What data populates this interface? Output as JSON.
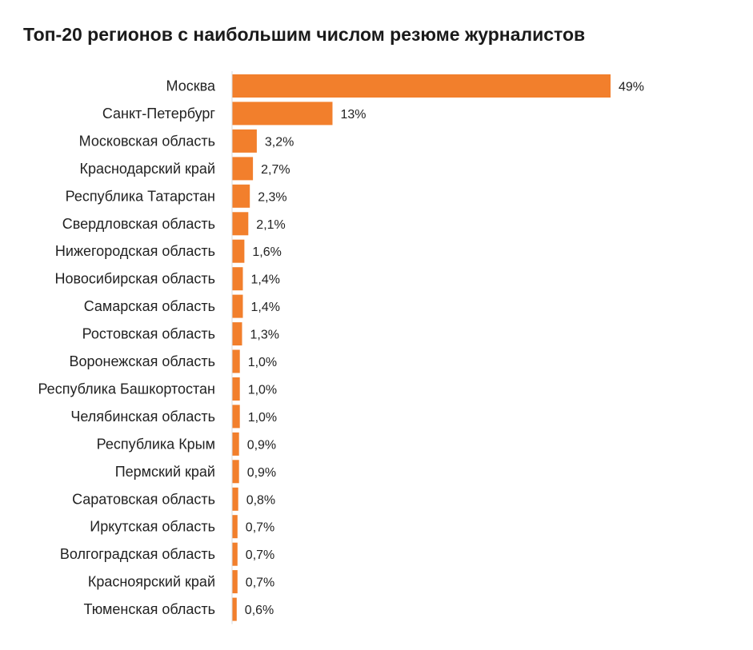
{
  "chart_data": {
    "type": "bar",
    "orientation": "horizontal",
    "title": "Топ-20 регионов с наибольшим числом резюме журналистов",
    "xlabel": "",
    "ylabel": "",
    "unit": "%",
    "xlim": [
      0,
      49
    ],
    "grid": false,
    "bar_color": "#f27f2c",
    "categories": [
      "Москва",
      "Санкт-Петербург",
      "Московская область",
      "Краснодарский край",
      "Республика Татарстан",
      "Свердловская область",
      "Нижегородская область",
      "Новосибирская область",
      "Самарская область",
      "Ростовская область",
      "Воронежская область",
      "Республика Башкортостан",
      "Челябинская область",
      "Республика Крым",
      "Пермский край",
      "Саратовская область",
      "Иркутская область",
      "Волгоградская область",
      "Красноярский край",
      "Тюменская область"
    ],
    "values": [
      49,
      13,
      3.2,
      2.7,
      2.3,
      2.1,
      1.6,
      1.4,
      1.4,
      1.3,
      1.0,
      1.0,
      1.0,
      0.9,
      0.9,
      0.8,
      0.7,
      0.7,
      0.7,
      0.6
    ],
    "value_labels": [
      "49%",
      "13%",
      "3,2%",
      "2,7%",
      "2,3%",
      "2,1%",
      "1,6%",
      "1,4%",
      "1,4%",
      "1,3%",
      "1,0%",
      "1,0%",
      "1,0%",
      "0,9%",
      "0,9%",
      "0,8%",
      "0,7%",
      "0,7%",
      "0,7%",
      "0,6%"
    ]
  }
}
